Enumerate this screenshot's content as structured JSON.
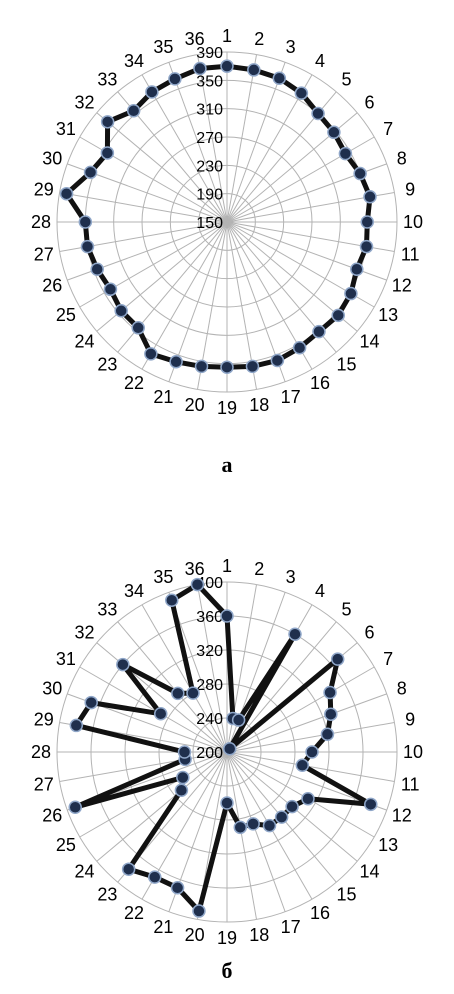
{
  "colors": {
    "series": "#111111",
    "marker_fill": "#1f2f4d",
    "marker_edge": "#8fa6c8",
    "grid": "#b3b3b3"
  },
  "chart_data": [
    {
      "type": "radar",
      "caption": "а",
      "categories": [
        "1",
        "2",
        "3",
        "4",
        "5",
        "6",
        "7",
        "8",
        "9",
        "10",
        "11",
        "12",
        "13",
        "14",
        "15",
        "16",
        "17",
        "18",
        "19",
        "20",
        "21",
        "22",
        "23",
        "24",
        "25",
        "26",
        "27",
        "28",
        "29",
        "30",
        "31",
        "32",
        "33",
        "34",
        "35",
        "36"
      ],
      "ticks": [
        "150",
        "190",
        "230",
        "270",
        "310",
        "350",
        "390"
      ],
      "rlim": [
        150,
        390
      ],
      "grid": true,
      "series": [
        {
          "values": [
            370,
            368,
            366,
            360,
            350,
            347,
            343,
            350,
            355,
            348,
            350,
            345,
            352,
            355,
            352,
            355,
            358,
            357,
            355,
            357,
            360,
            365,
            345,
            345,
            340,
            345,
            350,
            350,
            380,
            355,
            345,
            370,
            355,
            362,
            365,
            370
          ]
        }
      ]
    },
    {
      "type": "radar",
      "caption": "б",
      "categories": [
        "1",
        "2",
        "3",
        "4",
        "5",
        "6",
        "7",
        "8",
        "9",
        "10",
        "11",
        "12",
        "13",
        "14",
        "15",
        "16",
        "17",
        "18",
        "19",
        "20",
        "21",
        "22",
        "23",
        "24",
        "25",
        "26",
        "27",
        "28",
        "29",
        "30",
        "31",
        "32",
        "33",
        "34",
        "35",
        "36"
      ],
      "ticks": [
        "200",
        "240",
        "280",
        "320",
        "360",
        "400"
      ],
      "rlim": [
        200,
        400
      ],
      "grid": true,
      "series": [
        {
          "values": [
            360,
            240,
            240,
            360,
            205,
            370,
            340,
            330,
            320,
            300,
            290,
            380,
            310,
            300,
            300,
            300,
            290,
            290,
            260,
            390,
            370,
            370,
            380,
            270,
            260,
            390,
            250,
            250,
            380,
            370,
            290,
            360,
            290,
            280,
            390,
            400
          ]
        }
      ]
    }
  ]
}
